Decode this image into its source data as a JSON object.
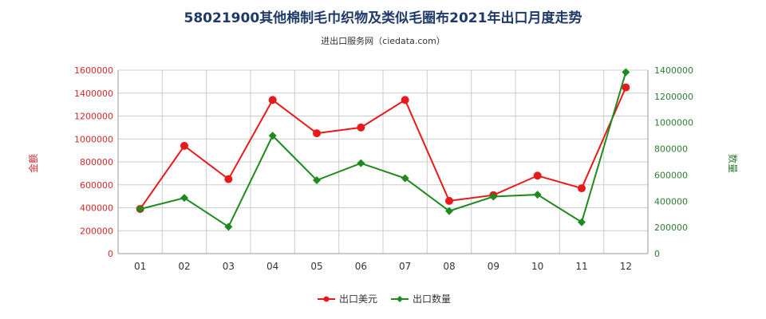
{
  "title": "58021900其他棉制毛巾织物及类似毛圈布2021年出口月度走势",
  "subtitle": "进出口服务网（ciedata.com）",
  "chart_data": {
    "type": "line",
    "categories": [
      "01",
      "02",
      "03",
      "04",
      "05",
      "06",
      "07",
      "08",
      "09",
      "10",
      "11",
      "12"
    ],
    "left_axis": {
      "label": "金额",
      "ylim": [
        0,
        1600000
      ],
      "ticks": [
        "0",
        "200000",
        "400000",
        "600000",
        "800000",
        "1000000",
        "1200000",
        "1400000",
        "1600000"
      ]
    },
    "right_axis": {
      "label": "数量",
      "ylim": [
        0,
        1400000
      ],
      "ticks": [
        "0",
        "200000",
        "400000",
        "600000",
        "800000",
        "1000000",
        "1200000",
        "1400000"
      ]
    },
    "series": [
      {
        "name": "出口美元",
        "axis": "left",
        "color": "#e8191a",
        "values": [
          390000,
          940000,
          650000,
          1340000,
          1050000,
          1100000,
          1340000,
          460000,
          510000,
          680000,
          570000,
          1450000
        ]
      },
      {
        "name": "出口数量",
        "axis": "right",
        "color": "#1e8a1e",
        "values": [
          340000,
          425000,
          205000,
          900000,
          560000,
          690000,
          575000,
          325000,
          435000,
          450000,
          240000,
          1385000
        ]
      }
    ],
    "grid": true,
    "legend_position": "bottom"
  }
}
